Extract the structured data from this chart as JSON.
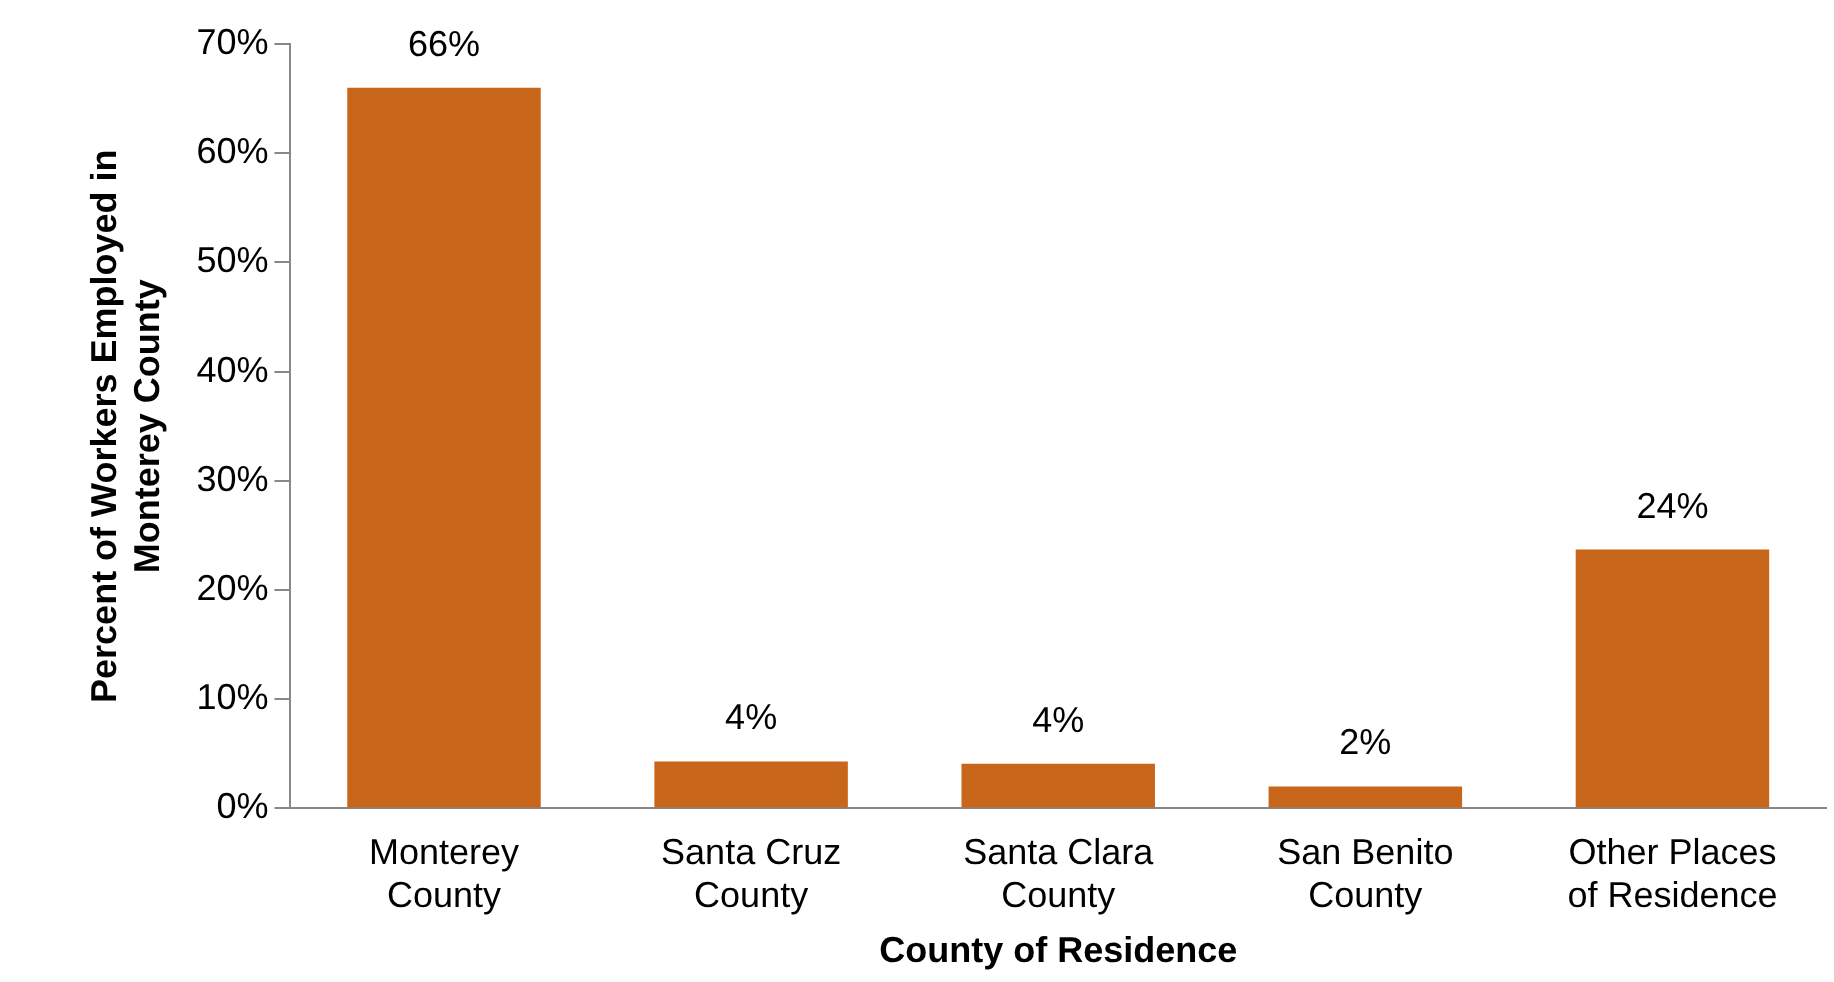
{
  "chart_data": {
    "type": "bar",
    "xlabel": "County of Residence",
    "ylabel": "Percent of Workers Employed in Monterey County",
    "categories": [
      "Monterey County",
      "Santa Cruz County",
      "Santa Clara County",
      "San Benito County",
      "Other Places of Residence"
    ],
    "values": [
      66,
      4.3,
      4.1,
      2,
      23.7
    ],
    "value_labels": [
      "66%",
      "4%",
      "4%",
      "2%",
      "24%"
    ],
    "color": "#c8661c",
    "ylim": [
      0,
      70
    ],
    "yticks": [
      {
        "value": 0,
        "label": "0%"
      },
      {
        "value": 10,
        "label": "10%"
      },
      {
        "value": 20,
        "label": "20%"
      },
      {
        "value": 30,
        "label": "30%"
      },
      {
        "value": 40,
        "label": "40%"
      },
      {
        "value": 50,
        "label": "50%"
      },
      {
        "value": 60,
        "label": "60%"
      },
      {
        "value": 70,
        "label": "70%"
      }
    ],
    "grid": false,
    "legend": false
  }
}
